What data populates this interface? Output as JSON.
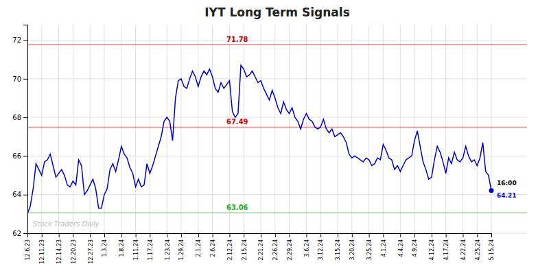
{
  "chart_data": {
    "type": "line",
    "title": "IYT Long Term Signals",
    "categories": [
      "12.6.23",
      null,
      null,
      null,
      null,
      "12.11.23",
      null,
      null,
      null,
      null,
      null,
      "12.14.23",
      null,
      null,
      null,
      null,
      "12.20.23",
      null,
      null,
      null,
      null,
      null,
      "12.27.23",
      null,
      null,
      null,
      null,
      "1.3.24",
      null,
      null,
      null,
      null,
      null,
      "1.8.24",
      null,
      null,
      null,
      null,
      "1.11.24",
      null,
      null,
      null,
      null,
      "1.17.24",
      null,
      null,
      null,
      null,
      null,
      "1.23.24",
      null,
      null,
      null,
      null,
      "1.29.24",
      null,
      null,
      null,
      null,
      null,
      "2.1.24",
      null,
      null,
      null,
      null,
      "2.6.24",
      null,
      null,
      null,
      null,
      null,
      "2.12.24",
      null,
      null,
      null,
      null,
      "2.15.24",
      null,
      null,
      null,
      null,
      null,
      "2.21.24",
      null,
      null,
      null,
      null,
      "2.26.24",
      null,
      null,
      null,
      null,
      "2.29.24",
      null,
      null,
      null,
      null,
      null,
      "3.6.24",
      null,
      null,
      null,
      null,
      "3.12.24",
      null,
      null,
      null,
      null,
      null,
      "3.15.24",
      null,
      null,
      null,
      null,
      "3.20.24",
      null,
      null,
      null,
      null,
      null,
      "3.25.24",
      null,
      null,
      null,
      null,
      "4.1.24",
      null,
      null,
      null,
      null,
      null,
      "4.4.24",
      null,
      null,
      null,
      null,
      "4.9.24",
      null,
      null,
      null,
      null,
      null,
      "4.12.24",
      null,
      null,
      null,
      null,
      "4.17.24",
      null,
      null,
      null,
      null,
      null,
      "4.22.24",
      null,
      null,
      null,
      null,
      "4.25.24",
      null,
      null,
      null,
      null,
      "5.15.24"
    ],
    "values": [
      63.0,
      63.4,
      64.3,
      65.6,
      65.3,
      65.0,
      65.7,
      65.8,
      66.1,
      65.5,
      64.9,
      65.1,
      65.3,
      65.0,
      64.5,
      64.4,
      64.7,
      64.5,
      65.8,
      65.5,
      64.0,
      64.2,
      64.5,
      64.8,
      64.3,
      63.3,
      63.3,
      64.0,
      64.3,
      65.3,
      65.6,
      65.2,
      65.8,
      66.5,
      66.1,
      65.9,
      65.4,
      65.1,
      64.4,
      64.8,
      64.4,
      64.5,
      65.6,
      65.1,
      65.5,
      66.0,
      66.5,
      67.0,
      67.8,
      68.0,
      67.8,
      66.8,
      69.0,
      69.9,
      70.0,
      69.6,
      69.5,
      70.0,
      70.4,
      70.1,
      69.6,
      70.1,
      70.4,
      70.2,
      70.5,
      70.1,
      69.5,
      69.3,
      69.8,
      69.5,
      69.7,
      69.9,
      68.3,
      68.0,
      68.2,
      70.7,
      70.5,
      70.1,
      70.2,
      70.4,
      70.1,
      69.8,
      69.9,
      69.5,
      69.2,
      68.9,
      69.4,
      69.0,
      68.5,
      68.2,
      68.8,
      68.4,
      68.2,
      68.5,
      68.0,
      67.8,
      67.4,
      67.9,
      68.2,
      67.9,
      67.8,
      67.5,
      67.4,
      67.5,
      67.9,
      67.4,
      67.2,
      67.4,
      67.0,
      67.1,
      67.2,
      67.0,
      66.7,
      66.1,
      65.9,
      66.0,
      65.9,
      65.8,
      65.7,
      65.9,
      65.8,
      65.5,
      65.6,
      65.9,
      65.8,
      66.6,
      66.3,
      65.9,
      65.8,
      65.3,
      65.5,
      65.2,
      65.5,
      65.8,
      65.9,
      66.0,
      66.8,
      67.3,
      66.5,
      65.7,
      65.3,
      64.8,
      64.9,
      65.8,
      66.5,
      66.2,
      65.7,
      65.1,
      65.9,
      65.6,
      66.2,
      65.8,
      65.7,
      65.9,
      66.5,
      66.0,
      65.7,
      65.8,
      65.5,
      65.9,
      66.7,
      65.2,
      65.0,
      64.21
    ],
    "color": "#0000cc",
    "marker": "circle",
    "ylim": [
      62.0,
      72.8
    ],
    "yticks": [
      62,
      64,
      66,
      68,
      70,
      72
    ],
    "grid": true,
    "reference_lines": [
      {
        "value": 71.78,
        "color": "#cc0000"
      },
      {
        "value": 67.49,
        "color": "#cc0000"
      },
      {
        "value": 63.06,
        "color": "#22aa22"
      }
    ],
    "last_point_label": "16:00",
    "watermark": "Stock Traders Daily"
  }
}
